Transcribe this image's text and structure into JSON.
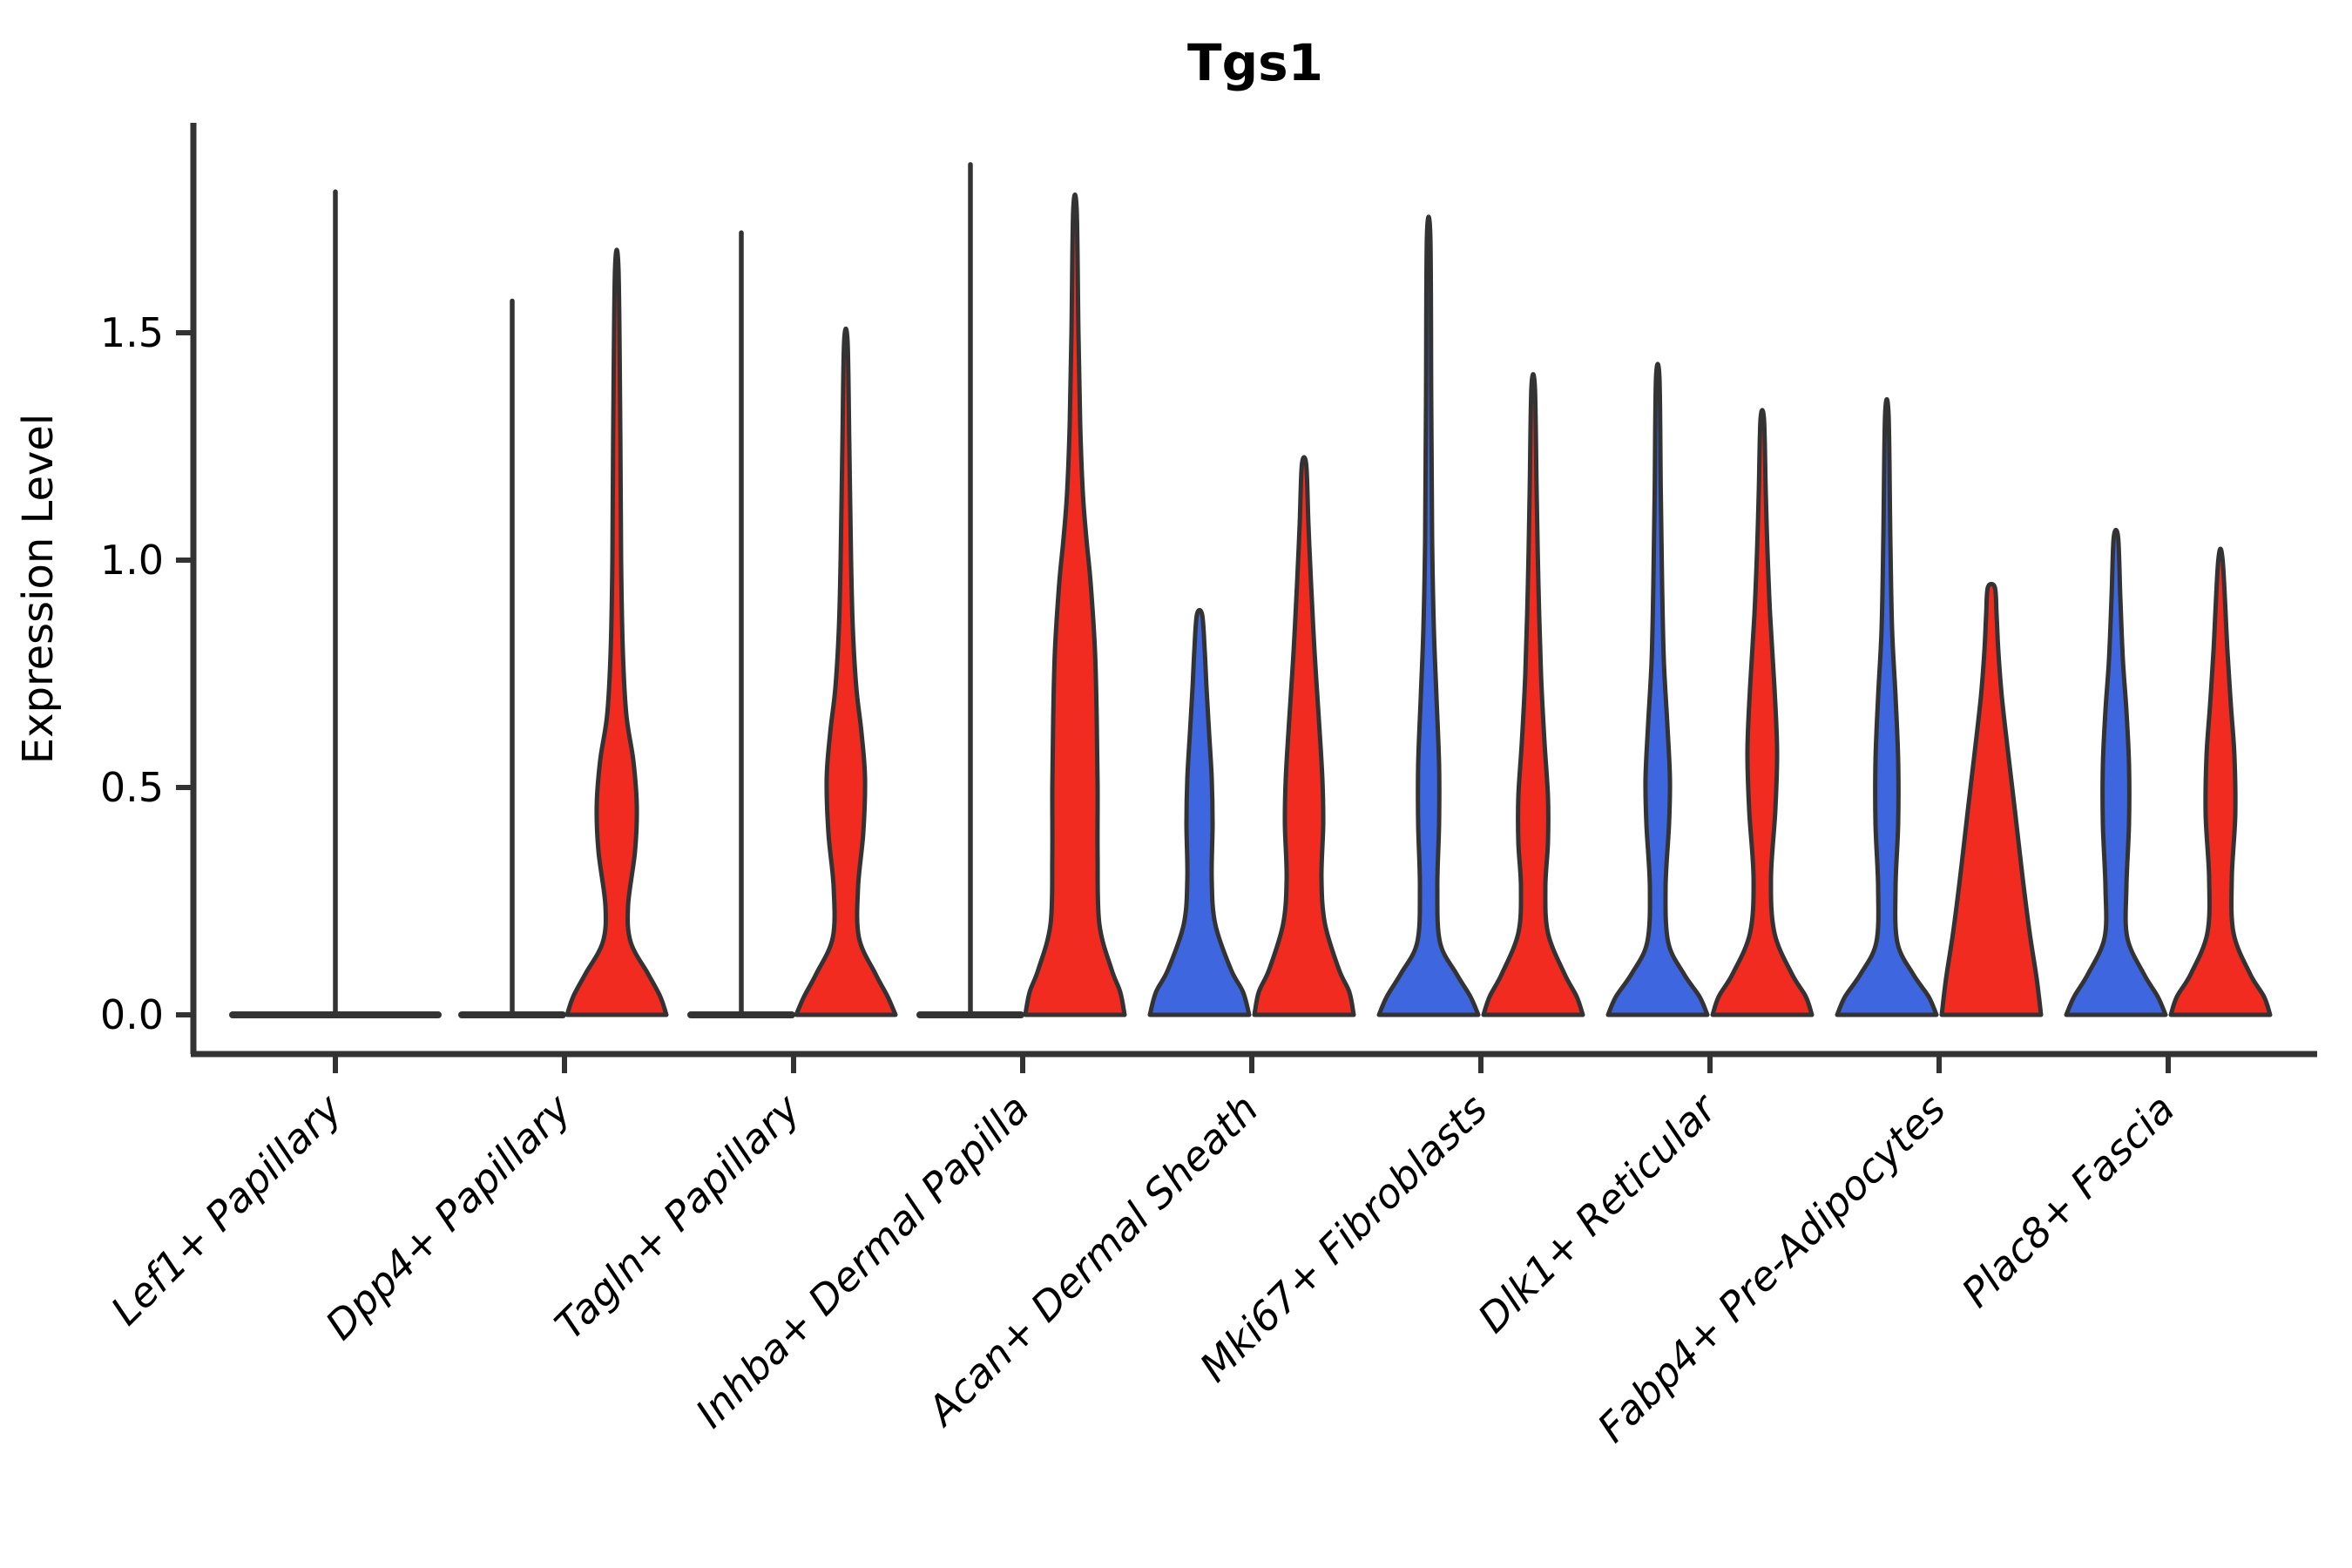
{
  "title": "Tgs1",
  "y_axis": {
    "label": "Expression Level",
    "tick_labels": [
      "0.0",
      "0.5",
      "1.0",
      "1.5"
    ],
    "tick_values": [
      0.0,
      0.5,
      1.0,
      1.5
    ],
    "ylim": [
      0,
      1.95
    ]
  },
  "colors": {
    "blue": "#3e67df",
    "red": "#f22b20",
    "stroke": "#333333",
    "background": "#ffffff"
  },
  "chart_data": {
    "type": "violin",
    "title": "Tgs1",
    "ylabel": "Expression Level",
    "xlabel": "",
    "split_violin": true,
    "grid": false,
    "legend": "none",
    "categories": [
      "Lef1+ Papillary",
      "Dpp4+ Papillary",
      "Tagln+ Papillary",
      "Inhba+ Dermal Papilla",
      "Acan+ Dermal Sheath",
      "Mki67+ Fibroblasts",
      "Dlk1+ Reticular",
      "Fabp4+ Pre-Adipocytes",
      "Plac8+ Fascia"
    ],
    "groups": [
      {
        "category": "Lef1+ Papillary",
        "violins": [
          {
            "side": "single",
            "color": "neutral",
            "flat": true,
            "max_expression": 1.81
          }
        ]
      },
      {
        "category": "Dpp4+ Papillary",
        "violins": [
          {
            "side": "left",
            "color": "blue",
            "flat": true,
            "max_expression": 1.57
          },
          {
            "side": "right",
            "color": "red",
            "flat": false,
            "max_expression": 1.64,
            "profile": [
              [
                0,
                57
              ],
              [
                0.04,
                50
              ],
              [
                0.09,
                36
              ],
              [
                0.16,
                16
              ],
              [
                0.24,
                13
              ],
              [
                0.36,
                21
              ],
              [
                0.46,
                23
              ],
              [
                0.56,
                19
              ],
              [
                0.66,
                11
              ],
              [
                0.8,
                7
              ],
              [
                1.0,
                5
              ],
              [
                1.3,
                4
              ],
              [
                1.64,
                2
              ]
            ]
          }
        ]
      },
      {
        "category": "Tagln+ Papillary",
        "violins": [
          {
            "side": "left",
            "color": "blue",
            "flat": true,
            "max_expression": 1.72
          },
          {
            "side": "right",
            "color": "red",
            "flat": false,
            "max_expression": 1.48,
            "profile": [
              [
                0,
                57
              ],
              [
                0.04,
                48
              ],
              [
                0.09,
                34
              ],
              [
                0.17,
                15
              ],
              [
                0.28,
                14
              ],
              [
                0.4,
                20
              ],
              [
                0.52,
                22
              ],
              [
                0.62,
                18
              ],
              [
                0.72,
                12
              ],
              [
                0.85,
                8
              ],
              [
                1.0,
                6
              ],
              [
                1.25,
                4
              ],
              [
                1.48,
                2
              ]
            ]
          }
        ]
      },
      {
        "category": "Inhba+ Dermal Papilla",
        "violins": [
          {
            "side": "left",
            "color": "blue",
            "flat": true,
            "max_expression": 1.87
          },
          {
            "side": "right",
            "color": "red",
            "flat": false,
            "max_expression": 1.77,
            "profile": [
              [
                0,
                57
              ],
              [
                0.05,
                52
              ],
              [
                0.1,
                42
              ],
              [
                0.2,
                28
              ],
              [
                0.35,
                26
              ],
              [
                0.5,
                26
              ],
              [
                0.65,
                25
              ],
              [
                0.8,
                23
              ],
              [
                0.95,
                18
              ],
              [
                1.05,
                13
              ],
              [
                1.15,
                9
              ],
              [
                1.3,
                6
              ],
              [
                1.5,
                4
              ],
              [
                1.77,
                2
              ]
            ]
          }
        ]
      },
      {
        "category": "Acan+ Dermal Sheath",
        "violins": [
          {
            "side": "left",
            "color": "blue",
            "flat": false,
            "max_expression": 0.88,
            "profile": [
              [
                0,
                57
              ],
              [
                0.05,
                50
              ],
              [
                0.1,
                36
              ],
              [
                0.2,
                18
              ],
              [
                0.3,
                14
              ],
              [
                0.42,
                15
              ],
              [
                0.52,
                14
              ],
              [
                0.62,
                11
              ],
              [
                0.72,
                8
              ],
              [
                0.8,
                6
              ],
              [
                0.88,
                3
              ]
            ]
          },
          {
            "side": "right",
            "color": "red",
            "flat": false,
            "max_expression": 1.21,
            "profile": [
              [
                0,
                57
              ],
              [
                0.05,
                52
              ],
              [
                0.1,
                40
              ],
              [
                0.2,
                24
              ],
              [
                0.3,
                20
              ],
              [
                0.42,
                22
              ],
              [
                0.52,
                21
              ],
              [
                0.65,
                17
              ],
              [
                0.8,
                12
              ],
              [
                0.95,
                8
              ],
              [
                1.08,
                5
              ],
              [
                1.21,
                2.5
              ]
            ]
          }
        ]
      },
      {
        "category": "Mki67+ Fibroblasts",
        "violins": [
          {
            "side": "left",
            "color": "blue",
            "flat": false,
            "max_expression": 1.71,
            "profile": [
              [
                0,
                57
              ],
              [
                0.04,
                48
              ],
              [
                0.09,
                32
              ],
              [
                0.16,
                13
              ],
              [
                0.28,
                10
              ],
              [
                0.42,
                12
              ],
              [
                0.55,
                12
              ],
              [
                0.7,
                9
              ],
              [
                0.85,
                6
              ],
              [
                1.05,
                4
              ],
              [
                1.35,
                3
              ],
              [
                1.71,
                2
              ]
            ]
          },
          {
            "side": "right",
            "color": "red",
            "flat": false,
            "max_expression": 1.38,
            "profile": [
              [
                0,
                57
              ],
              [
                0.04,
                50
              ],
              [
                0.09,
                36
              ],
              [
                0.18,
                17
              ],
              [
                0.28,
                14
              ],
              [
                0.38,
                17
              ],
              [
                0.48,
                17
              ],
              [
                0.6,
                13
              ],
              [
                0.75,
                9
              ],
              [
                0.95,
                6
              ],
              [
                1.15,
                4
              ],
              [
                1.38,
                2
              ]
            ]
          }
        ]
      },
      {
        "category": "Dlk1+ Reticular",
        "violins": [
          {
            "side": "left",
            "color": "blue",
            "flat": false,
            "max_expression": 1.4,
            "profile": [
              [
                0,
                57
              ],
              [
                0.04,
                48
              ],
              [
                0.09,
                30
              ],
              [
                0.16,
                12
              ],
              [
                0.28,
                9
              ],
              [
                0.42,
                13
              ],
              [
                0.52,
                14
              ],
              [
                0.64,
                11
              ],
              [
                0.78,
                7
              ],
              [
                0.95,
                5
              ],
              [
                1.15,
                3.5
              ],
              [
                1.4,
                2
              ]
            ]
          },
          {
            "side": "right",
            "color": "red",
            "flat": false,
            "max_expression": 1.31,
            "profile": [
              [
                0,
                57
              ],
              [
                0.04,
                50
              ],
              [
                0.09,
                34
              ],
              [
                0.18,
                14
              ],
              [
                0.3,
                10
              ],
              [
                0.45,
                15
              ],
              [
                0.58,
                17
              ],
              [
                0.72,
                14
              ],
              [
                0.88,
                9
              ],
              [
                1.02,
                6
              ],
              [
                1.15,
                4
              ],
              [
                1.31,
                2
              ]
            ]
          }
        ]
      },
      {
        "category": "Fabp4+ Pre-Adipocytes",
        "violins": [
          {
            "side": "left",
            "color": "blue",
            "flat": false,
            "max_expression": 1.32,
            "profile": [
              [
                0,
                57
              ],
              [
                0.04,
                48
              ],
              [
                0.09,
                30
              ],
              [
                0.16,
                12
              ],
              [
                0.28,
                10
              ],
              [
                0.42,
                13
              ],
              [
                0.56,
                13
              ],
              [
                0.7,
                10
              ],
              [
                0.85,
                6
              ],
              [
                1.05,
                4
              ],
              [
                1.32,
                2
              ]
            ]
          },
          {
            "side": "right",
            "color": "red",
            "flat": false,
            "max_expression": 0.94,
            "profile": [
              [
                0,
                57
              ],
              [
                0.08,
                52
              ],
              [
                0.18,
                44
              ],
              [
                0.3,
                36
              ],
              [
                0.45,
                27
              ],
              [
                0.58,
                19
              ],
              [
                0.7,
                12
              ],
              [
                0.8,
                8
              ],
              [
                0.88,
                6
              ],
              [
                0.94,
                4
              ]
            ]
          }
        ]
      },
      {
        "category": "Plac8+ Fascia",
        "violins": [
          {
            "side": "left",
            "color": "blue",
            "flat": false,
            "max_expression": 1.05,
            "profile": [
              [
                0,
                57
              ],
              [
                0.04,
                48
              ],
              [
                0.09,
                32
              ],
              [
                0.17,
                13
              ],
              [
                0.28,
                12
              ],
              [
                0.42,
                15
              ],
              [
                0.55,
                15
              ],
              [
                0.67,
                12
              ],
              [
                0.78,
                8
              ],
              [
                0.92,
                5
              ],
              [
                1.05,
                2.5
              ]
            ]
          },
          {
            "side": "right",
            "color": "red",
            "flat": false,
            "max_expression": 1.0,
            "profile": [
              [
                0,
                57
              ],
              [
                0.04,
                50
              ],
              [
                0.09,
                34
              ],
              [
                0.18,
                15
              ],
              [
                0.3,
                13
              ],
              [
                0.44,
                17
              ],
              [
                0.57,
                16
              ],
              [
                0.68,
                12
              ],
              [
                0.8,
                8
              ],
              [
                1.0,
                2.5
              ]
            ]
          }
        ]
      }
    ]
  }
}
